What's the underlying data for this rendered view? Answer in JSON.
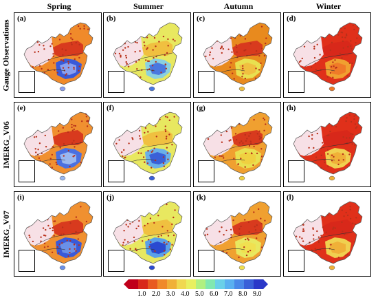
{
  "columns": [
    "Spring",
    "Summer",
    "Autumn",
    "Winter"
  ],
  "rows": [
    "Gauge Observations",
    "IMERG_V06",
    "IMERG_V07"
  ],
  "panels": [
    {
      "label": "(a)",
      "base": "#f08a2a",
      "se": "#8aa0f0",
      "se2": "#3a5ad8",
      "north": "#d83a1e"
    },
    {
      "label": "(b)",
      "base": "#e8e860",
      "se": "#4a78e0",
      "se2": "#8ad0e0",
      "north": "#f0c040"
    },
    {
      "label": "(c)",
      "base": "#e88a1e",
      "se": "#f0c040",
      "se2": "#e8e050",
      "north": "#d83a1e"
    },
    {
      "label": "(d)",
      "base": "#e0301a",
      "se": "#f07a28",
      "se2": "#f0a030",
      "north": "#d8281a"
    },
    {
      "label": "(e)",
      "base": "#f09030",
      "se": "#9ab8f0",
      "se2": "#4a70e0",
      "north": "#d83a1e"
    },
    {
      "label": "(f)",
      "base": "#e8e860",
      "se": "#3a60d8",
      "se2": "#6ab0e8",
      "north": "#f0c040"
    },
    {
      "label": "(g)",
      "base": "#f0a030",
      "se": "#f0d040",
      "se2": "#e8e050",
      "north": "#d83a1e"
    },
    {
      "label": "(h)",
      "base": "#e0301a",
      "se": "#f0b038",
      "se2": "#f0d050",
      "north": "#d8281a"
    },
    {
      "label": "(i)",
      "base": "#f09030",
      "se": "#6a90e8",
      "se2": "#3a5ad8",
      "north": "#d83a1e"
    },
    {
      "label": "(j)",
      "base": "#e8e860",
      "se": "#2a4ad0",
      "se2": "#5aa0e8",
      "north": "#f0c040"
    },
    {
      "label": "(k)",
      "base": "#f0a030",
      "se": "#f0e050",
      "se2": "#e8e860",
      "north": "#d83a1e"
    },
    {
      "label": "(l)",
      "base": "#e0301a",
      "se": "#f0b038",
      "se2": "#f0d050",
      "north": "#d8281a"
    }
  ],
  "colorbar": {
    "colors": [
      "#c0001a",
      "#d8281a",
      "#e85a20",
      "#f08a2a",
      "#f0b038",
      "#f0d850",
      "#e8f060",
      "#b0f080",
      "#80e8b0",
      "#6ad0e8",
      "#5ab0f0",
      "#4a88e8",
      "#3a60d8",
      "#2a38c8"
    ],
    "ticks": [
      "1.0",
      "2.0",
      "3.0",
      "4.0",
      "5.0",
      "6.0",
      "7.0",
      "8.0",
      "9.0"
    ]
  }
}
